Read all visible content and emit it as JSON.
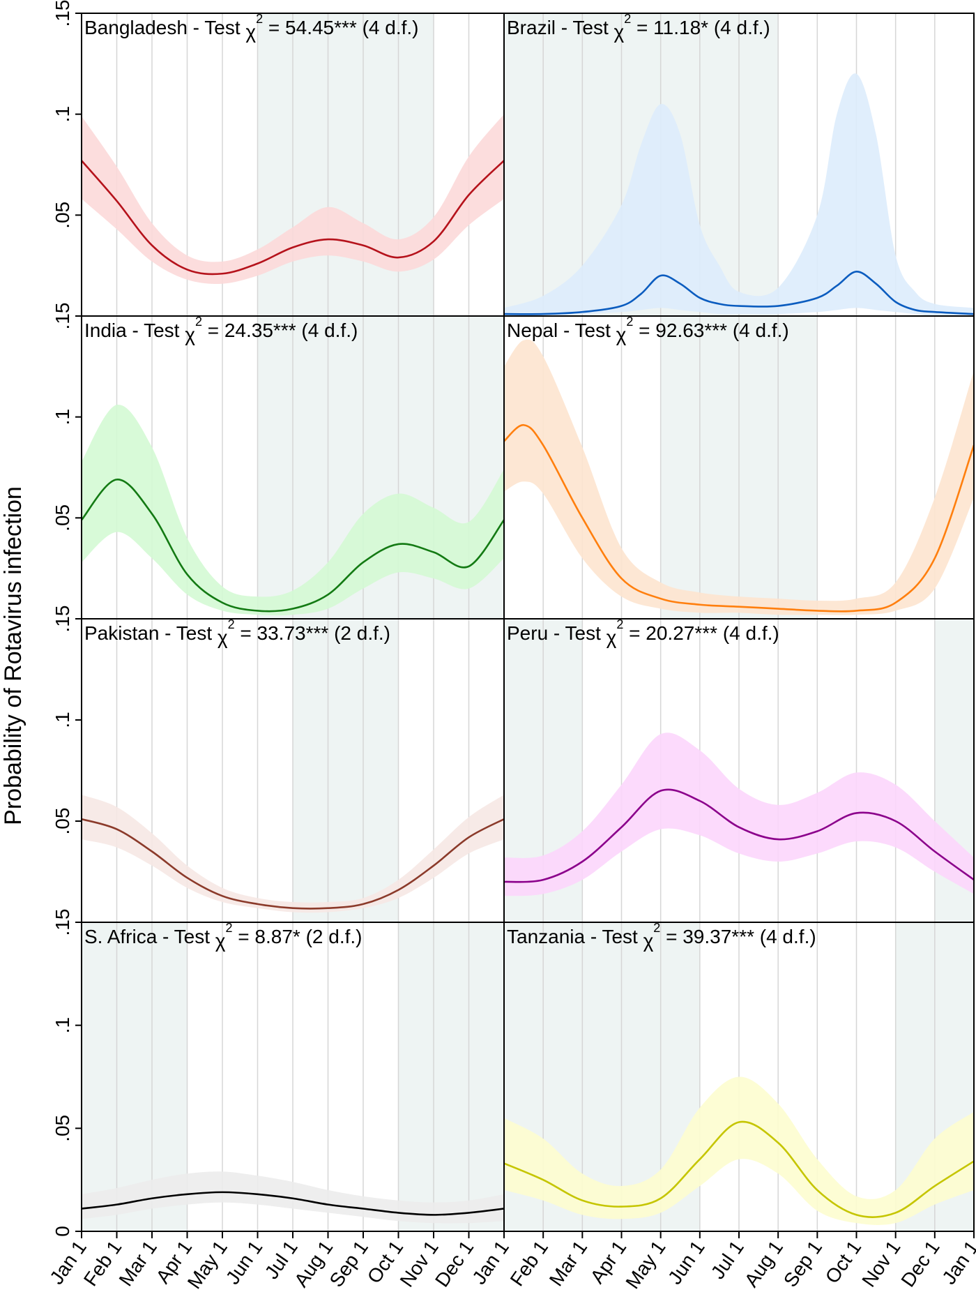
{
  "chart_data": {
    "type": "line",
    "ylabel": "Probability of Rotavirus infection",
    "xlabel": "",
    "ylim": [
      0,
      0.15
    ],
    "yticks": [
      0,
      0.05,
      0.1,
      0.15
    ],
    "ytick_labels": [
      "0",
      ".05",
      ".1",
      ".15"
    ],
    "xtick_labels": [
      "Jan 1",
      "Feb 1",
      "Mar 1",
      "Apr 1",
      "May 1",
      "Jun 1",
      "Jul 1",
      "Aug 1",
      "Sep 1",
      "Oct 1",
      "Nov 1",
      "Dec 1",
      "Jan 1"
    ],
    "chi_symbol": "χ",
    "chi_exponent": "2",
    "grid": "vertical monthly",
    "panels": [
      {
        "name": "Bangladesh",
        "title_prefix": "Bangladesh - Test ",
        "title_stat": " = 54.45*** (4 d.f.)",
        "line_color": "#b5121b",
        "band_color": "#fcd9d9",
        "shaded": [
          [
            5,
            10
          ]
        ],
        "x": [
          0,
          1,
          2,
          3,
          4,
          5,
          6,
          7,
          8,
          9,
          10,
          11,
          12
        ],
        "mean": [
          0.077,
          0.057,
          0.035,
          0.023,
          0.021,
          0.026,
          0.034,
          0.038,
          0.035,
          0.029,
          0.037,
          0.06,
          0.077
        ],
        "lower": [
          0.058,
          0.043,
          0.027,
          0.018,
          0.016,
          0.02,
          0.027,
          0.03,
          0.027,
          0.022,
          0.028,
          0.045,
          0.058
        ],
        "upper": [
          0.099,
          0.074,
          0.046,
          0.03,
          0.027,
          0.033,
          0.044,
          0.054,
          0.046,
          0.038,
          0.049,
          0.079,
          0.1
        ]
      },
      {
        "name": "Brazil",
        "title_prefix": "Brazil - Test ",
        "title_stat": " = 11.18* (4 d.f.)",
        "line_color": "#0b5cbf",
        "band_color": "#ddecfc",
        "shaded": [
          [
            0,
            7
          ]
        ],
        "x": [
          0,
          1,
          2,
          3,
          3.5,
          4,
          4.5,
          5,
          5.5,
          6,
          7,
          8,
          8.5,
          9,
          9.5,
          10,
          10.5,
          11,
          12
        ],
        "mean": [
          0.001,
          0.001,
          0.002,
          0.005,
          0.011,
          0.02,
          0.016,
          0.009,
          0.006,
          0.005,
          0.005,
          0.009,
          0.015,
          0.022,
          0.016,
          0.007,
          0.003,
          0.002,
          0.001
        ],
        "lower": [
          0,
          0,
          0.001,
          0.002,
          0.003,
          0.004,
          0.003,
          0.002,
          0.001,
          0.001,
          0.001,
          0.002,
          0.003,
          0.004,
          0.003,
          0.002,
          0.001,
          0,
          0
        ],
        "upper": [
          0.004,
          0.01,
          0.025,
          0.055,
          0.085,
          0.105,
          0.09,
          0.045,
          0.025,
          0.012,
          0.014,
          0.05,
          0.1,
          0.12,
          0.09,
          0.03,
          0.012,
          0.006,
          0.004
        ]
      },
      {
        "name": "India",
        "title_prefix": "India - Test ",
        "title_stat": " = 24.35*** (4 d.f.)",
        "line_color": "#137a13",
        "band_color": "#d4f9d4",
        "shaded": [
          [
            5,
            12
          ]
        ],
        "x": [
          0,
          1,
          2,
          3,
          4,
          5,
          6,
          7,
          8,
          9,
          10,
          11,
          12
        ],
        "mean": [
          0.049,
          0.069,
          0.052,
          0.022,
          0.008,
          0.004,
          0.005,
          0.012,
          0.028,
          0.037,
          0.033,
          0.026,
          0.049
        ],
        "lower": [
          0.028,
          0.043,
          0.03,
          0.012,
          0.004,
          0.002,
          0.002,
          0.005,
          0.015,
          0.023,
          0.02,
          0.015,
          0.03
        ],
        "upper": [
          0.078,
          0.106,
          0.085,
          0.04,
          0.016,
          0.011,
          0.014,
          0.028,
          0.052,
          0.062,
          0.055,
          0.048,
          0.074
        ]
      },
      {
        "name": "Nepal",
        "title_prefix": "Nepal - Test ",
        "title_stat": " = 92.63*** (4 d.f.)",
        "line_color": "#ff7f0e",
        "band_color": "#fde4cf",
        "shaded": [
          [
            4,
            8
          ]
        ],
        "x": [
          0,
          0.5,
          1,
          2,
          3,
          4,
          5,
          6,
          7,
          8,
          9,
          10,
          11,
          12
        ],
        "mean": [
          0.088,
          0.096,
          0.086,
          0.05,
          0.02,
          0.01,
          0.007,
          0.006,
          0.005,
          0.004,
          0.004,
          0.008,
          0.03,
          0.086
        ],
        "lower": [
          0.063,
          0.068,
          0.062,
          0.03,
          0.011,
          0.005,
          0.003,
          0.003,
          0.002,
          0.002,
          0.002,
          0.004,
          0.015,
          0.06
        ],
        "upper": [
          0.125,
          0.138,
          0.13,
          0.085,
          0.035,
          0.018,
          0.013,
          0.011,
          0.01,
          0.009,
          0.01,
          0.018,
          0.06,
          0.123
        ]
      },
      {
        "name": "Pakistan",
        "title_prefix": "Pakistan - Test ",
        "title_stat": " = 33.73*** (2 d.f.)",
        "line_color": "#8b3a2a",
        "band_color": "#f6e8e4",
        "shaded": [
          [
            6,
            9
          ]
        ],
        "x": [
          0,
          1,
          2,
          3,
          4,
          5,
          6,
          7,
          8,
          9,
          10,
          11,
          12
        ],
        "mean": [
          0.051,
          0.046,
          0.035,
          0.022,
          0.013,
          0.009,
          0.007,
          0.007,
          0.009,
          0.016,
          0.028,
          0.042,
          0.051
        ],
        "lower": [
          0.041,
          0.037,
          0.028,
          0.017,
          0.01,
          0.007,
          0.005,
          0.005,
          0.007,
          0.012,
          0.022,
          0.034,
          0.041
        ],
        "upper": [
          0.063,
          0.057,
          0.044,
          0.028,
          0.017,
          0.012,
          0.01,
          0.01,
          0.012,
          0.021,
          0.036,
          0.052,
          0.063
        ]
      },
      {
        "name": "Peru",
        "title_prefix": "Peru - Test ",
        "title_stat": " = 20.27*** (4 d.f.)",
        "line_color": "#8b008b",
        "band_color": "#fcd6fc",
        "shaded": [
          [
            0,
            2
          ],
          [
            11,
            12
          ]
        ],
        "x": [
          0,
          1,
          2,
          3,
          4,
          5,
          6,
          7,
          8,
          9,
          10,
          11,
          12
        ],
        "mean": [
          0.02,
          0.021,
          0.03,
          0.047,
          0.065,
          0.06,
          0.047,
          0.041,
          0.045,
          0.054,
          0.05,
          0.035,
          0.021
        ],
        "lower": [
          0.013,
          0.014,
          0.021,
          0.035,
          0.046,
          0.043,
          0.034,
          0.03,
          0.034,
          0.04,
          0.037,
          0.025,
          0.014
        ],
        "upper": [
          0.032,
          0.033,
          0.045,
          0.068,
          0.093,
          0.085,
          0.066,
          0.058,
          0.064,
          0.074,
          0.068,
          0.05,
          0.032
        ]
      },
      {
        "name": "S. Africa",
        "title_prefix": "S. Africa - Test ",
        "title_stat": " =  8.87* (2 d.f.)",
        "line_color": "#000000",
        "band_color": "#ececec",
        "shaded": [
          [
            0,
            3
          ],
          [
            9,
            12
          ]
        ],
        "x": [
          0,
          1,
          2,
          3,
          4,
          5,
          6,
          7,
          8,
          9,
          10,
          11,
          12
        ],
        "mean": [
          0.011,
          0.013,
          0.016,
          0.018,
          0.019,
          0.018,
          0.016,
          0.013,
          0.011,
          0.009,
          0.008,
          0.009,
          0.011
        ],
        "lower": [
          0.006,
          0.008,
          0.011,
          0.013,
          0.014,
          0.013,
          0.011,
          0.009,
          0.007,
          0.005,
          0.004,
          0.004,
          0.005
        ],
        "upper": [
          0.018,
          0.021,
          0.025,
          0.028,
          0.029,
          0.027,
          0.024,
          0.02,
          0.017,
          0.015,
          0.014,
          0.015,
          0.018
        ]
      },
      {
        "name": "Tanzania",
        "title_prefix": "Tanzania - Test ",
        "title_stat": " = 39.37*** (4 d.f.)",
        "line_color": "#c5c500",
        "band_color": "#fdfdcf",
        "shaded": [
          [
            0,
            5
          ],
          [
            10,
            12
          ]
        ],
        "x": [
          0,
          1,
          2,
          3,
          4,
          5,
          6,
          7,
          8,
          9,
          10,
          11,
          12
        ],
        "mean": [
          0.033,
          0.025,
          0.015,
          0.012,
          0.016,
          0.035,
          0.053,
          0.043,
          0.02,
          0.008,
          0.009,
          0.022,
          0.034
        ],
        "lower": [
          0.02,
          0.015,
          0.008,
          0.006,
          0.009,
          0.022,
          0.035,
          0.028,
          0.01,
          0.004,
          0.004,
          0.013,
          0.02
        ],
        "upper": [
          0.055,
          0.045,
          0.028,
          0.022,
          0.03,
          0.06,
          0.075,
          0.062,
          0.035,
          0.017,
          0.02,
          0.045,
          0.058
        ]
      }
    ]
  }
}
